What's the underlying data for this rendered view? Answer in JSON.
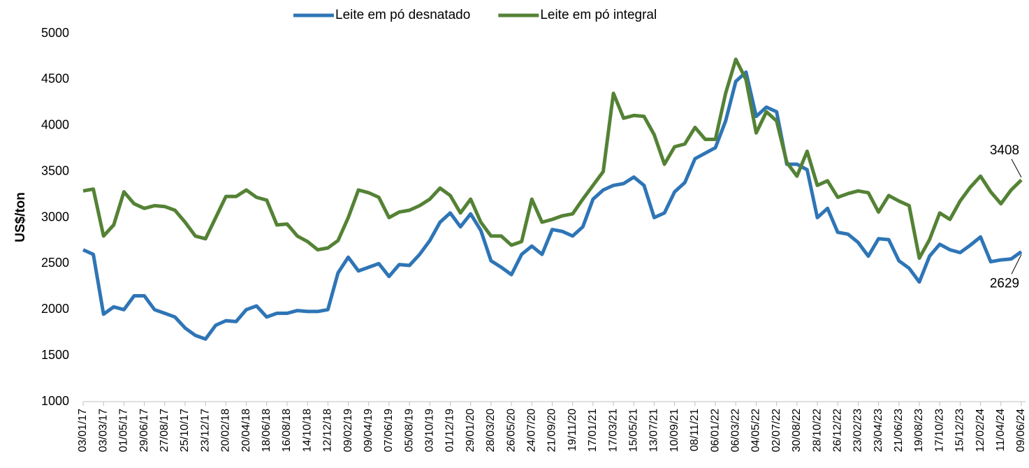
{
  "chart_data": {
    "type": "line",
    "y_label": "US$/ton",
    "categories": [
      "03/01/17",
      null,
      "03/03/17",
      null,
      "01/05/17",
      null,
      "29/06/17",
      null,
      "27/08/17",
      null,
      "25/10/17",
      null,
      "23/12/17",
      null,
      "20/02/18",
      null,
      "20/04/18",
      null,
      "18/06/18",
      null,
      "16/08/18",
      null,
      "14/10/18",
      null,
      "12/12/18",
      null,
      "09/02/19",
      null,
      "09/04/19",
      null,
      "07/06/19",
      null,
      "05/08/19",
      null,
      "03/10/19",
      null,
      "01/12/19",
      null,
      "29/01/20",
      null,
      "28/03/20",
      null,
      "26/05/20",
      null,
      "24/07/20",
      null,
      "21/09/20",
      null,
      "19/11/20",
      null,
      "17/01/21",
      null,
      "17/03/21",
      null,
      "15/05/21",
      null,
      "13/07/21",
      null,
      "10/09/21",
      null,
      "08/11/21",
      null,
      "06/01/22",
      null,
      "06/03/22",
      null,
      "04/05/22",
      null,
      "02/07/22",
      null,
      "30/08/22",
      null,
      "28/10/22",
      null,
      "26/12/22",
      null,
      "23/02/23",
      null,
      "23/04/23",
      null,
      "21/06/23",
      null,
      "19/08/23",
      null,
      "17/10/23",
      null,
      "15/12/23",
      null,
      "12/02/24",
      null,
      "11/04/24",
      null,
      "09/06/24"
    ],
    "series": [
      {
        "name": "Leite em pó desnatado",
        "color": "#2e75b6",
        "values": [
          2650,
          2600,
          1950,
          2030,
          2000,
          2150,
          2150,
          2000,
          1960,
          1920,
          1800,
          1720,
          1680,
          1830,
          1880,
          1870,
          2000,
          2040,
          1920,
          1960,
          1960,
          1990,
          1980,
          1980,
          2000,
          2400,
          2570,
          2420,
          2460,
          2500,
          2360,
          2490,
          2480,
          2600,
          2750,
          2950,
          3050,
          2900,
          3040,
          2860,
          2530,
          2460,
          2380,
          2600,
          2690,
          2600,
          2870,
          2850,
          2800,
          2900,
          3200,
          3300,
          3350,
          3370,
          3440,
          3350,
          3000,
          3050,
          3280,
          3380,
          3640,
          3700,
          3760,
          4050,
          4480,
          4580,
          4100,
          4200,
          4150,
          3580,
          3580,
          3520,
          3000,
          3100,
          2840,
          2820,
          2730,
          2580,
          2770,
          2760,
          2530,
          2450,
          2300,
          2580,
          2710,
          2650,
          2620,
          2700,
          2790,
          2520,
          2540,
          2550,
          2629
        ]
      },
      {
        "name": "Leite em pó integral",
        "color": "#548235",
        "values": [
          3290,
          3310,
          2800,
          2920,
          3280,
          3150,
          3100,
          3130,
          3120,
          3080,
          2950,
          2800,
          2770,
          3000,
          3230,
          3230,
          3300,
          3220,
          3190,
          2920,
          2930,
          2800,
          2740,
          2650,
          2670,
          2750,
          3000,
          3300,
          3270,
          3220,
          3000,
          3060,
          3080,
          3130,
          3200,
          3320,
          3240,
          3050,
          3200,
          2950,
          2800,
          2800,
          2700,
          2740,
          3200,
          2950,
          2980,
          3020,
          3040,
          3200,
          3350,
          3500,
          4350,
          4080,
          4110,
          4100,
          3900,
          3580,
          3770,
          3800,
          3980,
          3850,
          3850,
          4350,
          4720,
          4500,
          3920,
          4150,
          4050,
          3600,
          3450,
          3720,
          3350,
          3400,
          3220,
          3260,
          3290,
          3270,
          3060,
          3240,
          3180,
          3130,
          2560,
          2760,
          3050,
          2980,
          3180,
          3330,
          3450,
          3280,
          3150,
          3300,
          3408
        ]
      }
    ],
    "ylim": [
      1000,
      5000
    ],
    "yticks": [
      1000,
      1500,
      2000,
      2500,
      3000,
      3500,
      4000,
      4500,
      5000
    ],
    "grid": false,
    "legend": "top"
  }
}
